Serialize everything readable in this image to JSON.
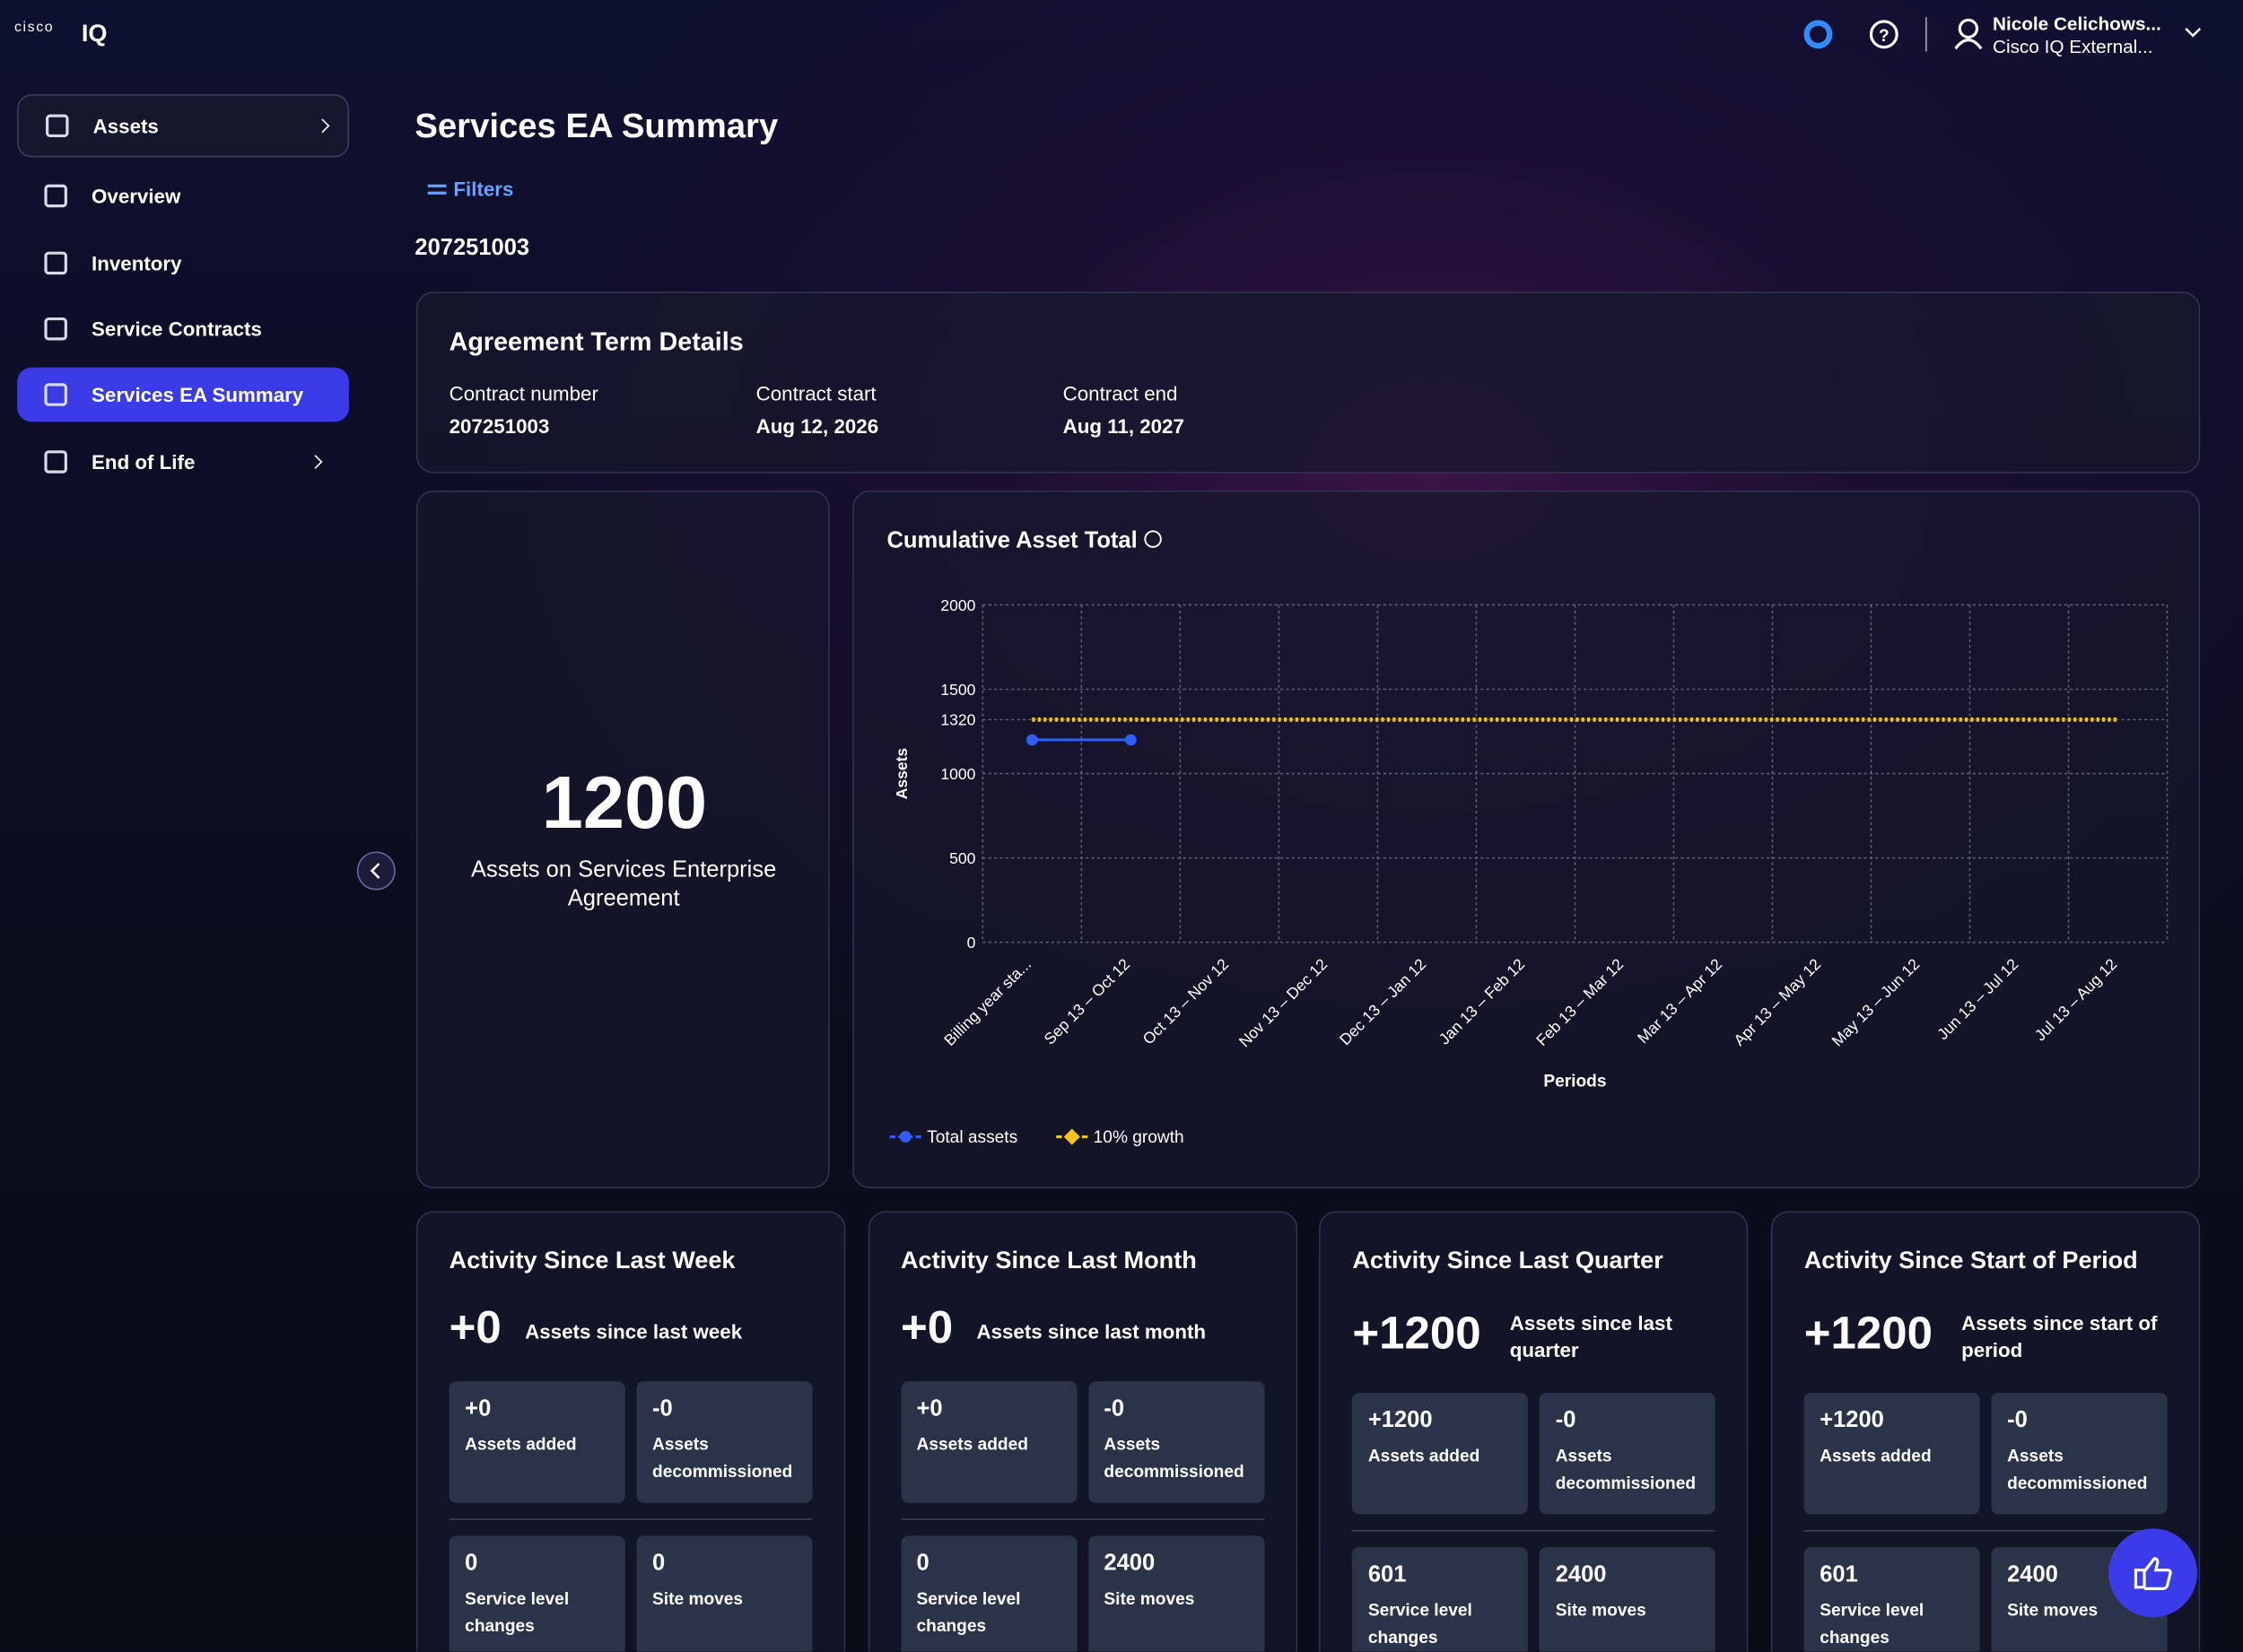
{
  "header": {
    "brand": "cisco",
    "logo": "IQ",
    "user_name": "Nicole Celichows...",
    "user_org": "Cisco IQ External..."
  },
  "sidebar": {
    "items": [
      "Assets",
      "Overview",
      "Inventory",
      "Service Contracts",
      "Services EA Summary",
      "End of Life"
    ]
  },
  "page": {
    "title": "Services EA Summary",
    "filters": "Filters",
    "account": "207251003"
  },
  "agreement": {
    "title": "Agreement Term Details",
    "fields": [
      {
        "label": "Contract number",
        "value": "207251003"
      },
      {
        "label": "Contract start",
        "value": "Aug 12, 2026"
      },
      {
        "label": "Contract end",
        "value": "Aug 11, 2027"
      }
    ]
  },
  "total": {
    "value": "1200",
    "label": "Assets on Services Enterprise Agreement"
  },
  "chart_data": {
    "type": "line",
    "title": "Cumulative Asset Total",
    "x_label": "Periods",
    "y_label": "Assets",
    "categories": [
      "Billing year sta...",
      "Sep 13 – Oct 12",
      "Oct 13 – Nov 12",
      "Nov 13 – Dec 12",
      "Dec 13 – Jan 12",
      "Jan 13 – Feb 12",
      "Feb 13 – Mar 12",
      "Mar 13 – Apr 12",
      "Apr 13 – May 12",
      "May 13 – Jun 12",
      "Jun 13 – Jul 12",
      "Jul 13 – Aug 12"
    ],
    "series": [
      {
        "name": "Total assets",
        "color": "#2f5bff",
        "values": [
          1200,
          1200,
          null,
          null,
          null,
          null,
          null,
          null,
          null,
          null,
          null,
          null
        ]
      },
      {
        "name": "10% growth",
        "color": "#f5c518",
        "values": [
          1320,
          1320,
          1320,
          1320,
          1320,
          1320,
          1320,
          1320,
          1320,
          1320,
          1320,
          1320
        ]
      }
    ],
    "ylim": [
      0,
      2000
    ],
    "yticks": [
      0,
      500,
      1000,
      1320,
      1500,
      2000
    ],
    "grid": true,
    "legend": "bottom-left"
  },
  "activity": [
    {
      "title": "Activity Since Last Week",
      "value": "+0",
      "label": "Assets since last week",
      "tiles": [
        {
          "value": "+0",
          "label": "Assets added"
        },
        {
          "value": "-0",
          "label": "Assets decommissioned"
        },
        {
          "value": "0",
          "label": "Service level changes"
        },
        {
          "value": "0",
          "label": "Site moves"
        }
      ]
    },
    {
      "title": "Activity Since Last Month",
      "value": "+0",
      "label": "Assets since last month",
      "tiles": [
        {
          "value": "+0",
          "label": "Assets added"
        },
        {
          "value": "-0",
          "label": "Assets decommissioned"
        },
        {
          "value": "0",
          "label": "Service level changes"
        },
        {
          "value": "2400",
          "label": "Site moves"
        }
      ]
    },
    {
      "title": "Activity Since Last Quarter",
      "value": "+1200",
      "label": "Assets since last quarter",
      "tiles": [
        {
          "value": "+1200",
          "label": "Assets added"
        },
        {
          "value": "-0",
          "label": "Assets decommissioned"
        },
        {
          "value": "601",
          "label": "Service level changes"
        },
        {
          "value": "2400",
          "label": "Site moves"
        }
      ]
    },
    {
      "title": "Activity Since Start of Period",
      "value": "+1200",
      "label": "Assets since start of period",
      "tiles": [
        {
          "value": "+1200",
          "label": "Assets added"
        },
        {
          "value": "-0",
          "label": "Assets decommissioned"
        },
        {
          "value": "601",
          "label": "Service level changes"
        },
        {
          "value": "2400",
          "label": "Site moves"
        }
      ]
    }
  ]
}
